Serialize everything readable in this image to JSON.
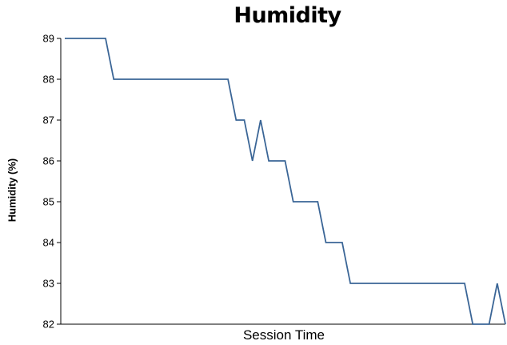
{
  "chart_data": {
    "type": "line",
    "title": "Humidity",
    "xlabel": "Session Time",
    "ylabel": "Humidity (%)",
    "ylim": [
      82,
      89
    ],
    "yticks": [
      82,
      83,
      84,
      85,
      86,
      87,
      88,
      89
    ],
    "grid": false,
    "series": [
      {
        "color": "#3a6596",
        "values": [
          89,
          89,
          89,
          89,
          89,
          89,
          88,
          88,
          88,
          88,
          88,
          88,
          88,
          88,
          88,
          88,
          88,
          88,
          88,
          88,
          88,
          87,
          87,
          86,
          87,
          86,
          86,
          86,
          85,
          85,
          85,
          85,
          84,
          84,
          84,
          83,
          83,
          83,
          83,
          83,
          83,
          83,
          83,
          83,
          83,
          83,
          83,
          83,
          83,
          83,
          82,
          82,
          82,
          83,
          82
        ]
      }
    ]
  }
}
